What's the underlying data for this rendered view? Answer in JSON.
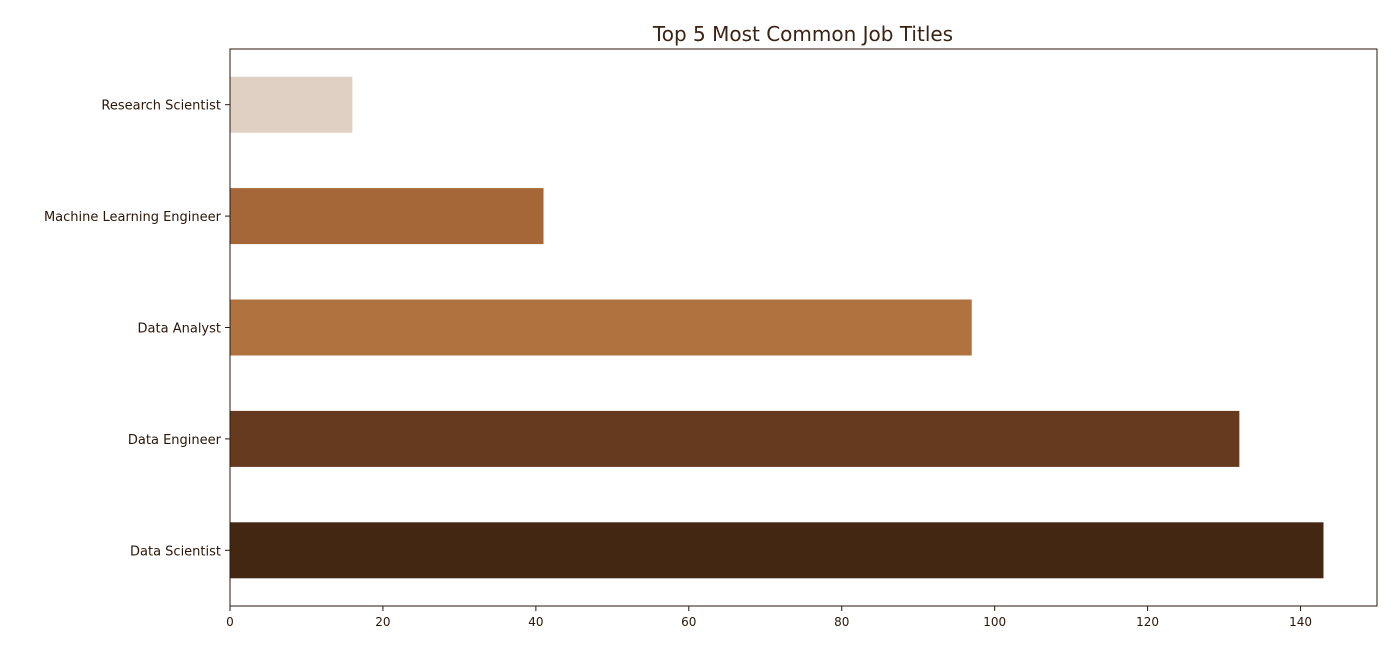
{
  "chart_data": {
    "type": "bar",
    "orientation": "horizontal",
    "title": "Top 5 Most Common Job Titles",
    "xlabel": "",
    "ylabel": "",
    "categories": [
      "Data Scientist",
      "Data Engineer",
      "Data Analyst",
      "Machine Learning Engineer",
      "Research Scientist"
    ],
    "values": [
      143,
      132,
      97,
      41,
      16
    ],
    "colors": [
      "#432713",
      "#663a1e",
      "#b07340",
      "#a66738",
      "#e0d0c3"
    ],
    "xlim": [
      0,
      150
    ],
    "xticks": [
      0,
      20,
      40,
      60,
      80,
      100,
      120,
      140
    ],
    "grid": false,
    "legend": "none"
  }
}
